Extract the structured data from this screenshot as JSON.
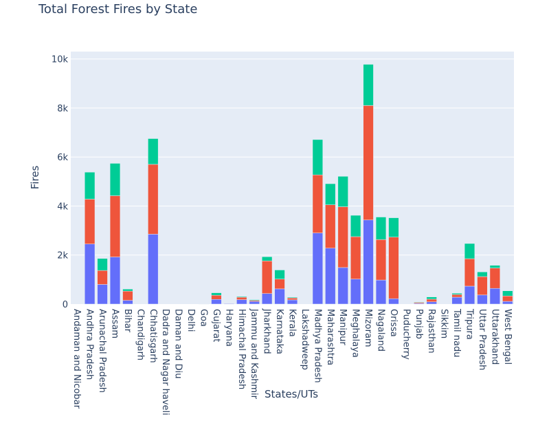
{
  "chart_data": {
    "type": "bar",
    "barmode": "stack",
    "title": "Total Forest Fires by State",
    "xlabel": "States/UTs",
    "ylabel": "Fires",
    "ylim": [
      0,
      10300
    ],
    "ytick_labels": [
      "0",
      "2k",
      "4k",
      "6k",
      "8k",
      "10k"
    ],
    "yticks": [
      0,
      2000,
      4000,
      6000,
      8000,
      10000
    ],
    "grid": true,
    "legend": "none",
    "colors": [
      "#636efa",
      "#ef553b",
      "#00cc96"
    ],
    "categories": [
      "Andaman and Nicobar",
      "Andhra Pradesh",
      "Arunachal Pradesh",
      "Assam",
      "Bihar",
      "Chandigarh",
      "Chhatisgarh",
      "Dadra and Nagar haveli",
      "Daman and Diu",
      "Delhi",
      "Goa",
      "Gujarat",
      "Haryana",
      "Himachal Pradesh",
      "Jammu and Kashmir",
      "Jharkhand",
      "Karnataka",
      "Kerala",
      "Lakshadweep",
      "Madhya Pradesh",
      "Maharashtra",
      "Manipur",
      "Meghalaya",
      "Mizoram",
      "Nagaland",
      "Orissa",
      "Puducherry",
      "Punjab",
      "Rajasthan",
      "Sikkim",
      "Tamil nadu",
      "Tripura",
      "Uttar Pradesh",
      "Uttarakhand",
      "West Bengal"
    ],
    "series": [
      {
        "values": [
          0,
          2450,
          800,
          1920,
          150,
          0,
          2850,
          0,
          0,
          0,
          5,
          190,
          20,
          180,
          110,
          430,
          620,
          170,
          0,
          2900,
          2280,
          1490,
          1020,
          3430,
          980,
          220,
          0,
          30,
          90,
          0,
          280,
          730,
          370,
          640,
          110
        ]
      },
      {
        "values": [
          0,
          1830,
          570,
          2500,
          380,
          0,
          2850,
          0,
          0,
          0,
          5,
          170,
          15,
          100,
          40,
          1330,
          400,
          80,
          0,
          2370,
          1770,
          2480,
          1730,
          4670,
          1650,
          2510,
          0,
          40,
          110,
          0,
          110,
          1120,
          750,
          830,
          220
        ]
      },
      {
        "values": [
          0,
          1100,
          490,
          1320,
          80,
          0,
          1050,
          0,
          0,
          0,
          0,
          100,
          5,
          30,
          30,
          170,
          370,
          30,
          0,
          1440,
          860,
          1240,
          870,
          1680,
          920,
          790,
          0,
          20,
          90,
          0,
          50,
          620,
          190,
          110,
          210
        ]
      }
    ]
  }
}
